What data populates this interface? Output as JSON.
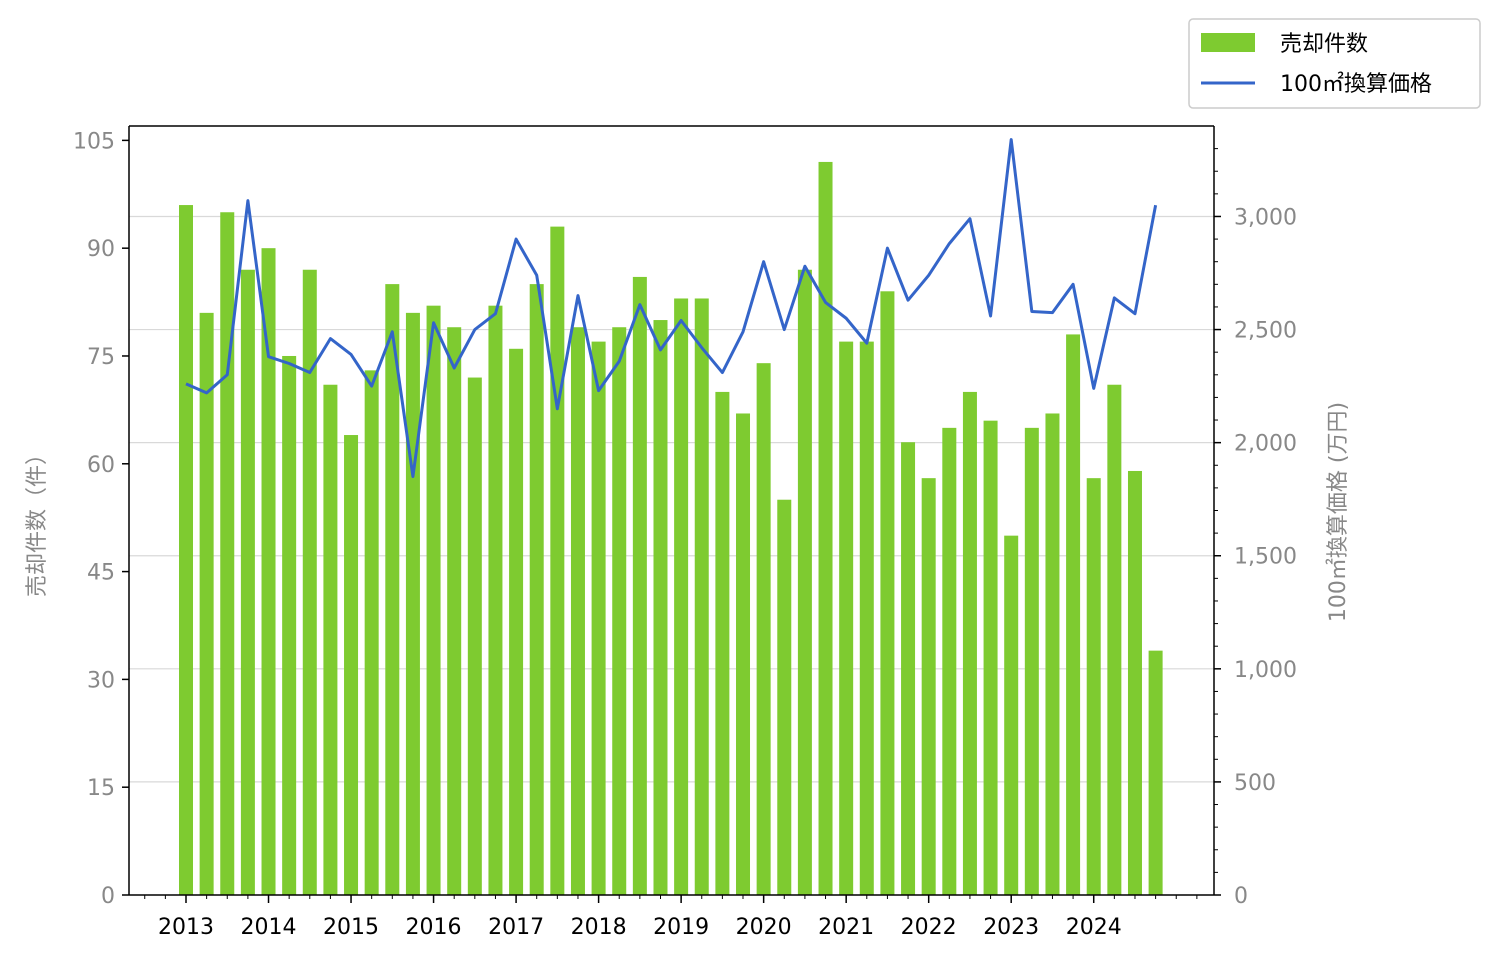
{
  "chart_data": {
    "type": "bar+line",
    "years": [
      "2013",
      "2014",
      "2015",
      "2016",
      "2017",
      "2018",
      "2019",
      "2020",
      "2021",
      "2022",
      "2023",
      "2024"
    ],
    "x_quarters": [
      "2013-Q1",
      "2013-Q2",
      "2013-Q3",
      "2013-Q4",
      "2014-Q1",
      "2014-Q2",
      "2014-Q3",
      "2014-Q4",
      "2015-Q1",
      "2015-Q2",
      "2015-Q3",
      "2015-Q4",
      "2016-Q1",
      "2016-Q2",
      "2016-Q3",
      "2016-Q4",
      "2017-Q1",
      "2017-Q2",
      "2017-Q3",
      "2017-Q4",
      "2018-Q1",
      "2018-Q2",
      "2018-Q3",
      "2018-Q4",
      "2019-Q1",
      "2019-Q2",
      "2019-Q3",
      "2019-Q4",
      "2020-Q1",
      "2020-Q2",
      "2020-Q3",
      "2020-Q4",
      "2021-Q1",
      "2021-Q2",
      "2021-Q3",
      "2021-Q4",
      "2022-Q1",
      "2022-Q2",
      "2022-Q3",
      "2022-Q4",
      "2023-Q1",
      "2023-Q2",
      "2023-Q3",
      "2023-Q4",
      "2024-Q1",
      "2024-Q2",
      "2024-Q3",
      "2024-Q4"
    ],
    "series": [
      {
        "name": "売却件数",
        "type": "bar",
        "axis": "left",
        "color": "#7ecb30",
        "values": [
          96,
          81,
          95,
          87,
          90,
          75,
          87,
          71,
          64,
          73,
          85,
          81,
          82,
          79,
          72,
          82,
          76,
          85,
          93,
          79,
          77,
          79,
          86,
          80,
          83,
          83,
          70,
          67,
          74,
          55,
          87,
          102,
          77,
          77,
          84,
          63,
          58,
          65,
          70,
          66,
          50,
          65,
          67,
          78,
          58,
          71,
          59,
          34
        ]
      },
      {
        "name": "100㎡換算価格",
        "type": "line",
        "axis": "right",
        "color": "#3465c9",
        "values": [
          2260,
          2220,
          2300,
          3070,
          2380,
          2350,
          2310,
          2460,
          2390,
          2250,
          2490,
          1850,
          2530,
          2330,
          2500,
          2570,
          2900,
          2740,
          2150,
          2650,
          2230,
          2360,
          2610,
          2410,
          2540,
          2420,
          2310,
          2490,
          2800,
          2500,
          2780,
          2620,
          2550,
          2440,
          2860,
          2630,
          2740,
          2880,
          2990,
          2560,
          3340,
          2580,
          2575,
          2700,
          2240,
          2640,
          2570,
          3050
        ]
      }
    ],
    "ylabel_left": "売却件数（件）",
    "ylabel_right": "100㎡換算価格 (万円)",
    "ylim_left": [
      0,
      107
    ],
    "ylim_right": [
      0,
      3400
    ],
    "yticks_left": [
      0,
      15,
      30,
      45,
      60,
      75,
      90,
      105
    ],
    "yticks_left_labels": [
      "0",
      "15",
      "30",
      "45",
      "60",
      "75",
      "90",
      "105"
    ],
    "yticks_right": [
      0,
      500,
      1000,
      1500,
      2000,
      2500,
      3000
    ],
    "yticks_right_labels": [
      "0",
      "500",
      "1,000",
      "1,500",
      "2,000",
      "2,500",
      "3,000"
    ],
    "grid": "horizontal at right-axis ticks",
    "legend_position": "top-right"
  }
}
